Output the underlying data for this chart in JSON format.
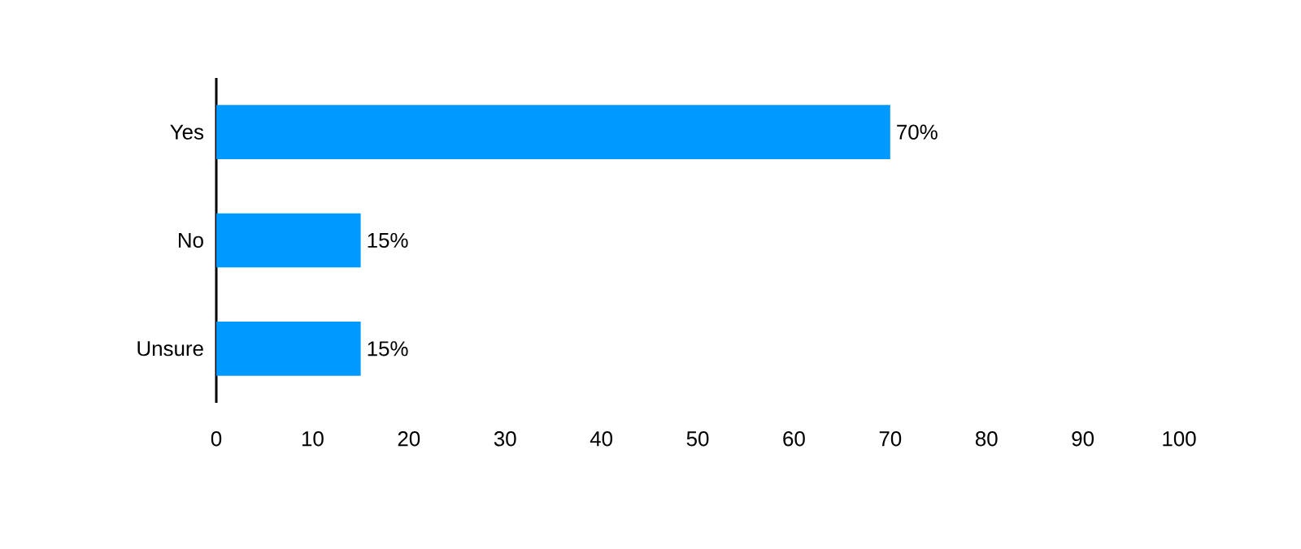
{
  "chart_data": {
    "type": "bar",
    "orientation": "horizontal",
    "categories": [
      "Yes",
      "No",
      "Unsure"
    ],
    "values": [
      70,
      15,
      15
    ],
    "value_labels": [
      "70%",
      "15%",
      "15%"
    ],
    "color": "#0099ff",
    "xlim": [
      0,
      100
    ],
    "xticks": [
      0,
      10,
      20,
      30,
      40,
      50,
      60,
      70,
      80,
      90,
      100
    ],
    "grid": false
  }
}
